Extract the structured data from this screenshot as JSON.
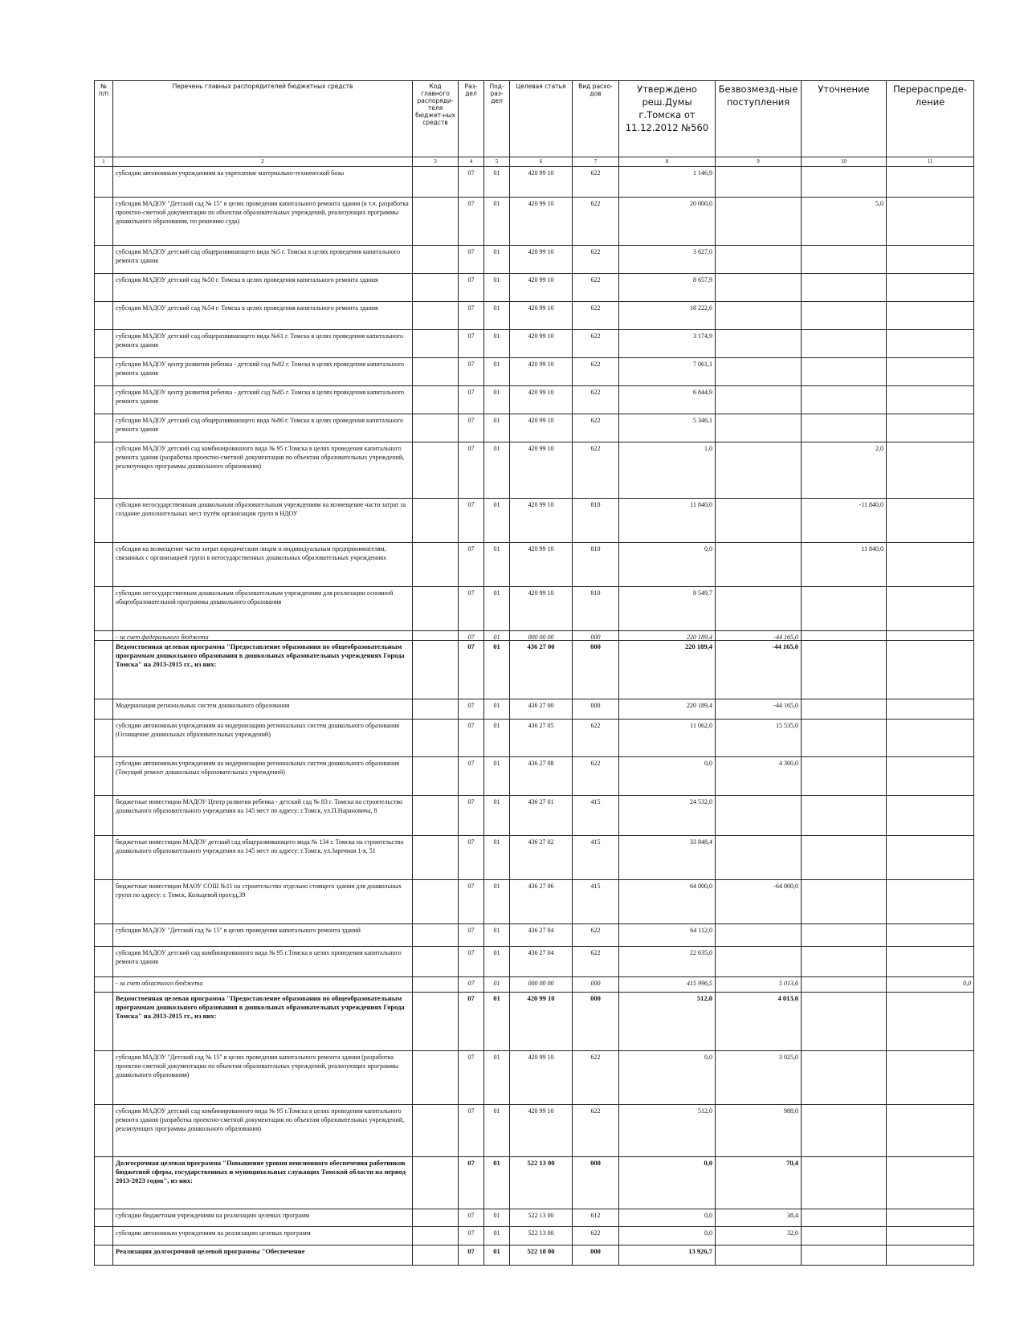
{
  "table": {
    "header": [
      "№ п/п",
      "Перечень главных распорядителей бюджетных средств",
      "Код главного распоряди-теля бюджет-ных средств",
      "Раз-дел",
      "Под-раз-дел",
      "Целевая статья",
      "Вид расхо-дов",
      "Утверждено реш.Думы г.Томска от 11.12.2012 №560",
      "Безвозмезд-ные поступления",
      "Уточнение",
      "Перераспреде-ление"
    ],
    "numbers": [
      "1",
      "2",
      "3",
      "4",
      "5",
      "6",
      "7",
      "8",
      "9",
      "10",
      "11"
    ],
    "rows": [
      {
        "name": "субсидии автономным учреждениям на укрепление материально-технической базы",
        "section": "07",
        "subsection": "01",
        "target": "420 99 10",
        "kind": "622",
        "approved": "1 146,9"
      },
      {
        "name": "субсидия МАДОУ \"Детский сад № 15\" в целях проведения капитального ремонта здания (в т.ч. разработка проектно-сметной документации по объектам образовательных учреждений, реализующих программы дошкольного образования, по решению суда)",
        "section": "07",
        "subsection": "01",
        "target": "420 99 10",
        "kind": "622",
        "approved": "20 000,0",
        "clarification": "5,0"
      },
      {
        "name": "субсидия МАДОУ детский сад общеразвивающего вида №5 г. Томска в целях проведения капитального ремонта здания",
        "section": "07",
        "subsection": "01",
        "target": "420 99 10",
        "kind": "622",
        "approved": "3 627,0"
      },
      {
        "name": "субсидия МАДОУ детский сад №50 г. Томска в целях проведения капитального ремонта здания",
        "section": "07",
        "subsection": "01",
        "target": "420 99 10",
        "kind": "622",
        "approved": "8 657,9"
      },
      {
        "name": "субсидия МАДОУ детский сад №54 г. Томска в целях проведения капитального ремонта здания",
        "section": "07",
        "subsection": "01",
        "target": "420 99 10",
        "kind": "622",
        "approved": "18 222,6"
      },
      {
        "name": "субсидия МАДОУ детский сад общеразвивающего вида №61 г. Томска в целях проведения капитального ремонта здания",
        "section": "07",
        "subsection": "01",
        "target": "420 99 10",
        "kind": "622",
        "approved": "3 174,9"
      },
      {
        "name": "субсидия МАДОУ центр развития ребенка - детский сад №82 г. Томска в целях проведения капитального ремонта здания",
        "section": "07",
        "subsection": "01",
        "target": "420 99 10",
        "kind": "622",
        "approved": "7 061,1"
      },
      {
        "name": "субсидия МАДОУ центр развития ребенка - детский сад №85 г. Томска в целях проведения капитального ремонта здания",
        "section": "07",
        "subsection": "01",
        "target": "420 99 10",
        "kind": "622",
        "approved": "6 844,9"
      },
      {
        "name": "субсидия МАДОУ детский сад общеразвивающего вида №86 г. Томска в целях проведения капитального ремонта здания",
        "section": "07",
        "subsection": "01",
        "target": "420 99 10",
        "kind": "622",
        "approved": "5 346,1"
      },
      {
        "name": "субсидия МАДОУ детский сад комбинированного вида № 95 г.Томска в целях проведения капитального ремонта здания (разработка проектно-сметной документации по объектам образовательных учреждений, реализующих программы дошкольного образования)",
        "section": "07",
        "subsection": "01",
        "target": "420 99 10",
        "kind": "622",
        "approved": "1,0",
        "clarification": "2,0"
      },
      {
        "name": "субсидия негосударственным дошкольным образовательным учреждениям на возмещение части затрат за создание дополнительных мест путём организации групп в НДОУ",
        "section": "07",
        "subsection": "01",
        "target": "420 99 10",
        "kind": "810",
        "approved": "11 840,0",
        "clarification": "-11 840,0"
      },
      {
        "name": "субсидия на возмещение части затрат юридическим лицам и индивидуальным предпринимателям, связанных с организацией групп в негосударственных дошкольных образовательных учреждениях",
        "section": "07",
        "subsection": "01",
        "target": "420 99 10",
        "kind": "810",
        "approved": "0,0",
        "clarification": "11 840,0"
      },
      {
        "name": "субсидии негосударственным дошкольным образовательным учреждениям для реализации основной общеобразовательной программы дошкольного образования",
        "section": "07",
        "subsection": "01",
        "target": "420 99 10",
        "kind": "810",
        "approved": "8 549,7"
      },
      {
        "name": "- за счет федерального бюджета",
        "section": "07",
        "subsection": "01",
        "target": "000 00 00",
        "kind": "000",
        "approved": "220 189,4",
        "grants": "-44 165,0",
        "style": "italic"
      },
      {
        "name": "Ведомственная целевая программа \"Предоставление образования по общеобразовательным программам дошкольного образования в дошкольных образовательных учреждениях Города Томска\" на 2013-2015 гг., из них:",
        "section": "07",
        "subsection": "01",
        "target": "436 27 00",
        "kind": "000",
        "approved": "220 189,4",
        "grants": "-44 165,0",
        "style": "bold"
      },
      {
        "name": "Модернизация региональных систем дошкольного образования",
        "section": "07",
        "subsection": "01",
        "target": "436 27 00",
        "kind": "000",
        "approved": "220 189,4",
        "grants": "-44 165,0"
      },
      {
        "name": "субсидии автономным учреждениям на модернизацию региональных систем дошкольного образования (Оснащение дошкольных образовательных учреждений)",
        "section": "07",
        "subsection": "01",
        "target": "436 27 05",
        "kind": "622",
        "approved": "11 062,0",
        "grants": "15 535,0"
      },
      {
        "name": "субсидии автономным учреждениям на модернизацию региональных систем дошкольного образования (Текущий ремонт дошкольных образовательных учреждений)",
        "section": "07",
        "subsection": "01",
        "target": "436 27 08",
        "kind": "622",
        "approved": "0,0",
        "grants": "4 300,0"
      },
      {
        "name": "бюджетные инвестиции МАДОУ Центр развития ребенка - детский сад № 83 г. Томска на строительство дошкольного образовательного учреждения на 145 мест по адресу: г.Томск, ул.П.Нарановича, 8",
        "section": "07",
        "subsection": "01",
        "target": "436 27 01",
        "kind": "415",
        "approved": "24 532,0"
      },
      {
        "name": "бюджетные инвестиции МАДОУ детский сад общеразвивающего вида № 134 г. Томска на строительство дошкольного образовательного учреждения на 145 мест по адресу: г.Томск, ул.Заречная 1-я, 51",
        "section": "07",
        "subsection": "01",
        "target": "436 27 02",
        "kind": "415",
        "approved": "33 848,4"
      },
      {
        "name": "бюджетные инвестиции МАОУ СОШ №11 на строительство отдельно стоящего здания для дошкольных групп по адресу: г. Томск, Кольцевой проезд,39",
        "section": "07",
        "subsection": "01",
        "target": "436 27 06",
        "kind": "415",
        "approved": "64 000,0",
        "grants": "-64 000,0"
      },
      {
        "name": "субсидия МАДОУ \"Детский сад № 15\" в целях проведения капитального ремонта зданий",
        "section": "07",
        "subsection": "01",
        "target": "436 27 04",
        "kind": "622",
        "approved": "64 112,0"
      },
      {
        "name": "субсидия МАДОУ детский сад комбинированного вида № 95 г.Томска в целях проведения капитального ремонта здания",
        "section": "07",
        "subsection": "01",
        "target": "436 27 04",
        "kind": "622",
        "approved": "22 635,0"
      },
      {
        "name": "- за счет областного бюджета",
        "section": "07",
        "subsection": "01",
        "target": "000 00 00",
        "kind": "000",
        "approved": "415 996,5",
        "grants": "5 013,6",
        "redistribution": "0,0",
        "style": "italic"
      },
      {
        "name": "Ведомственная целевая программа \"Предоставление образования по общеобразовательным программам дошкольного образования в дошкольных образовательных учреждениях Города Томска\" на 2013-2015 гг., из них:",
        "section": "07",
        "subsection": "01",
        "target": "420 99 10",
        "kind": "000",
        "approved": "512,0",
        "grants": "4 013,0",
        "style": "bold"
      },
      {
        "name": "субсидия МАДОУ \"Детский сад № 15\" в целях проведения капитального ремонта здания (разработка проектно-сметной документации по объектам образовательных учреждений, реализующих программы дошкольного образования)",
        "section": "07",
        "subsection": "01",
        "target": "420 99 10",
        "kind": "622",
        "approved": "0,0",
        "grants": "3 025,0"
      },
      {
        "name": "субсидия МАДОУ детский сад комбинированного вида № 95 г.Томска в целях проведения капитального ремонта здания (разработка проектно-сметной документации по объектам образовательных учреждений, реализующих программы дошкольного образования)",
        "section": "07",
        "subsection": "01",
        "target": "420 99 10",
        "kind": "622",
        "approved": "512,0",
        "grants": "988,0"
      },
      {
        "name": "Долгосрочная целевая программа \"Повышение уровня пенсионного обеспечения работников бюджетной сферы, государственных и муниципальных служащих Томской области на период 2013-2023 годов\", из них:",
        "section": "07",
        "subsection": "01",
        "target": "522 13 00",
        "kind": "000",
        "approved": "0,0",
        "grants": "70,4",
        "style": "bold"
      },
      {
        "name": "субсидии бюджетным учреждениям на реализацию целевых программ",
        "section": "07",
        "subsection": "01",
        "target": "522 13 00",
        "kind": "612",
        "approved": "0,0",
        "grants": "38,4"
      },
      {
        "name": "субсидии автономным учреждениям на реализацию целевых программ",
        "section": "07",
        "subsection": "01",
        "target": "522 13 00",
        "kind": "622",
        "approved": "0,0",
        "grants": "32,0"
      },
      {
        "name": "Реализация долгосрочной целевой программы \"Обеспечение",
        "section": "07",
        "subsection": "01",
        "target": "522 18 00",
        "kind": "000",
        "approved": "13 926,7",
        "style": "bold"
      }
    ]
  }
}
